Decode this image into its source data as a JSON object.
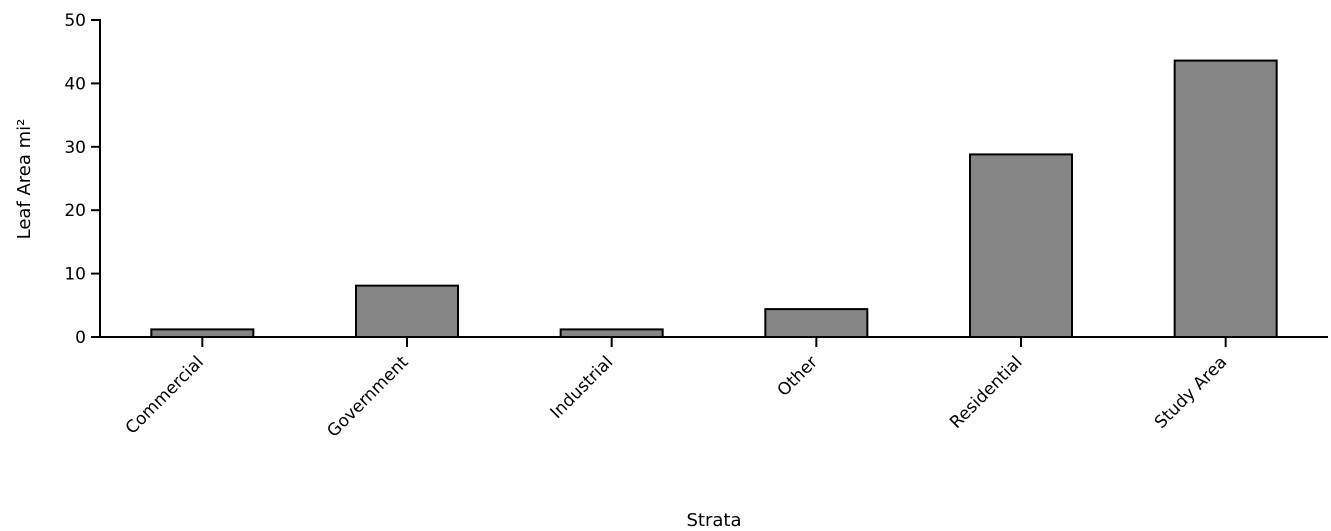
{
  "chart_data": {
    "type": "bar",
    "title": "",
    "xlabel": "Strata",
    "ylabel": "Leaf Area mi²",
    "categories": [
      "Commercial",
      "Government",
      "Industrial",
      "Other",
      "Residential",
      "Study Area"
    ],
    "values": [
      1.2,
      8.1,
      1.2,
      4.4,
      28.8,
      43.6
    ],
    "ylim": [
      0,
      50
    ],
    "yticks": [
      "0",
      "10",
      "20",
      "30",
      "40",
      "50"
    ],
    "grid": false,
    "legend": "none",
    "bar_color": "#858585",
    "bar_edge_color": "#000000"
  }
}
